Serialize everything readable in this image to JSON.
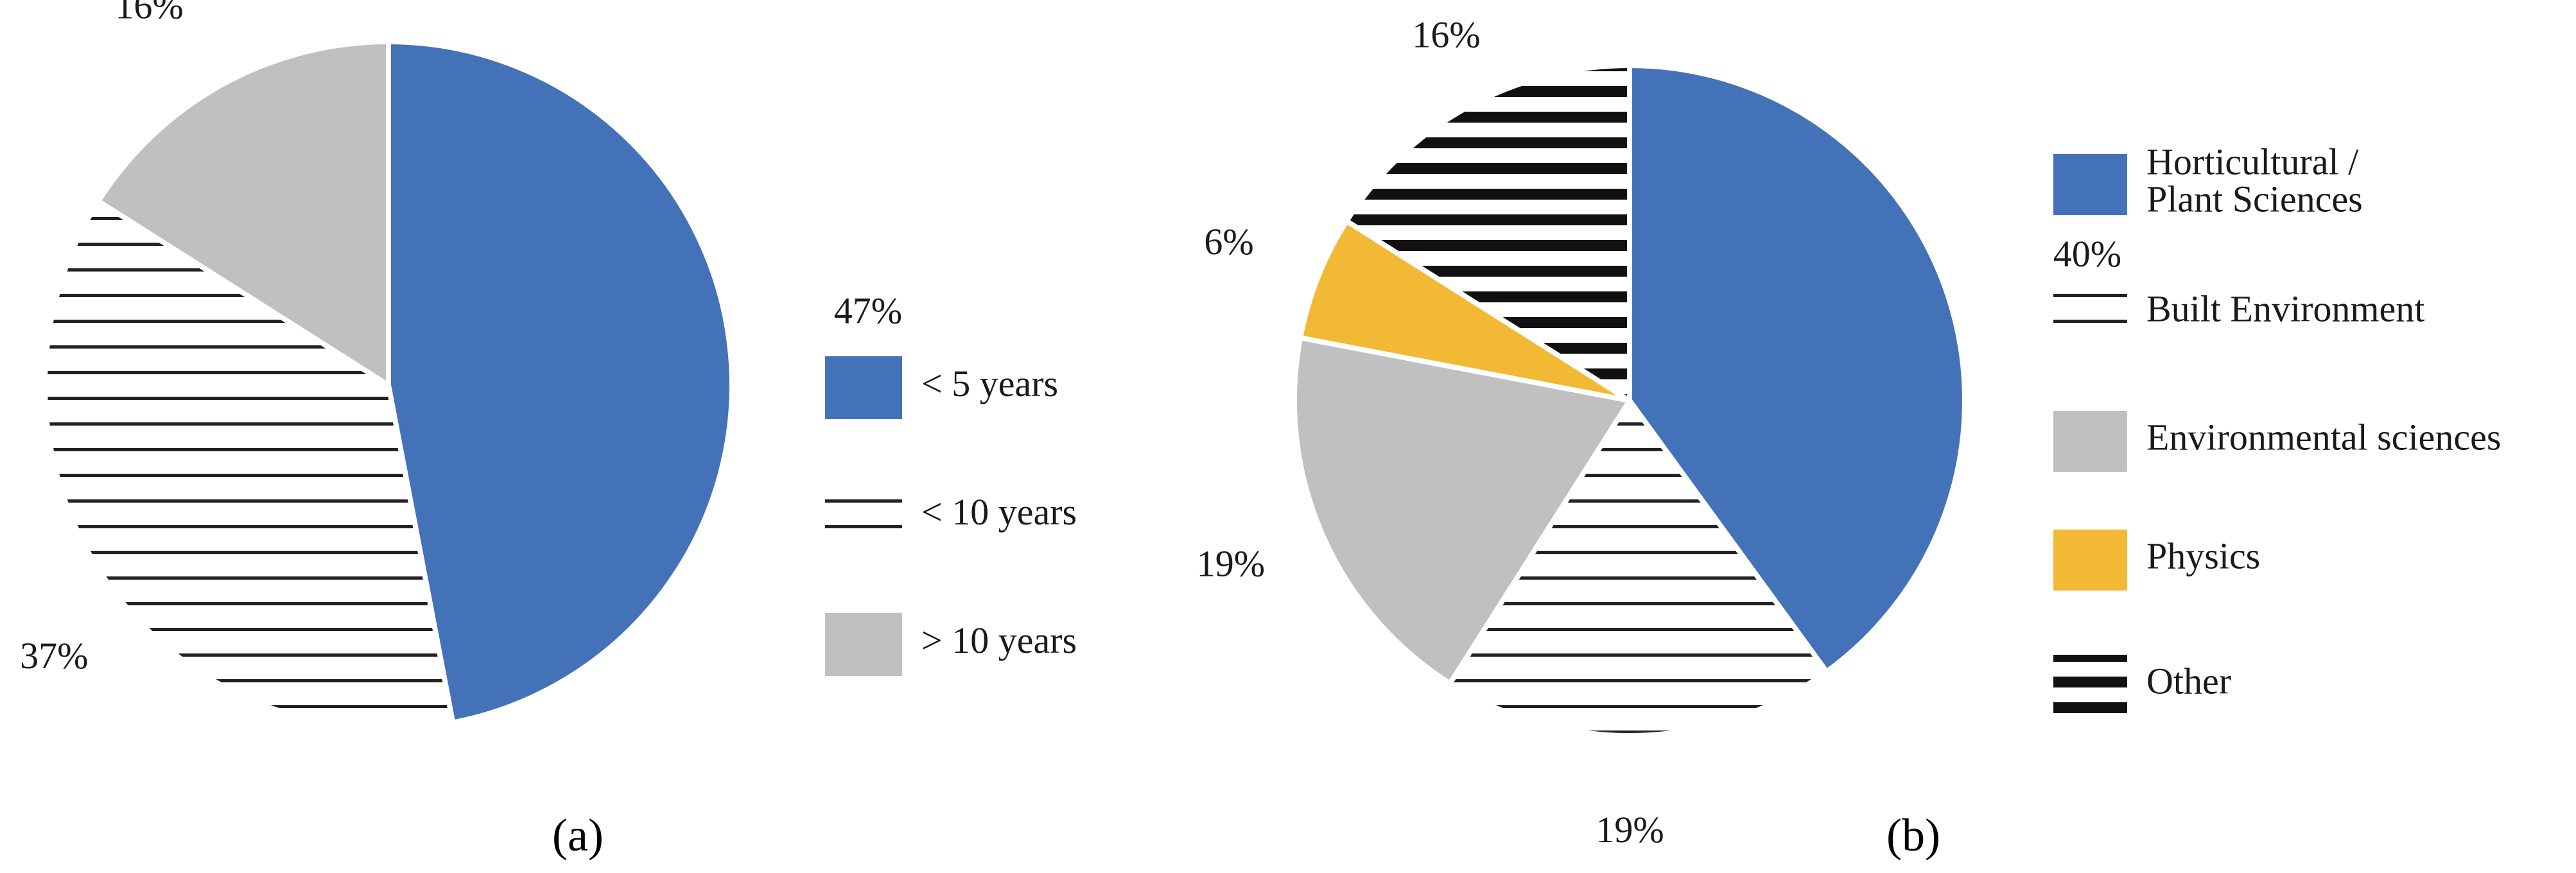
{
  "chart_data": [
    {
      "type": "pie",
      "panel_label": "(a)",
      "start_angle_deg": 0,
      "direction": "clockwise",
      "slices": [
        {
          "label": "< 5 years",
          "value": 47,
          "value_label": "47%",
          "fill": "solid",
          "color": "#4472b8"
        },
        {
          "label": "< 10 years",
          "value": 37,
          "value_label": "37%",
          "fill": "hatch-thin",
          "color": "#222222"
        },
        {
          "label": "> 10 years",
          "value": 16,
          "value_label": "16%",
          "fill": "solid",
          "color": "#bfc0bf"
        }
      ],
      "legend_placement": "right"
    },
    {
      "type": "pie",
      "panel_label": "(b)",
      "start_angle_deg": 0,
      "direction": "clockwise",
      "slices": [
        {
          "label": "Horticultural /\nPlant Sciences",
          "value": 40,
          "value_label": "40%",
          "fill": "solid",
          "color": "#4472b8"
        },
        {
          "label": "Built Environment",
          "value": 19,
          "value_label": "19%",
          "fill": "hatch-thin",
          "color": "#222222"
        },
        {
          "label": "Environmental sciences",
          "value": 19,
          "value_label": "19%",
          "fill": "solid",
          "color": "#bfc0bf"
        },
        {
          "label": "Physics",
          "value": 6,
          "value_label": "6%",
          "fill": "solid",
          "color": "#f2b935"
        },
        {
          "label": "Other",
          "value": 16,
          "value_label": "16%",
          "fill": "hatch-thick",
          "color": "#111111"
        }
      ],
      "legend_placement": "right"
    }
  ]
}
